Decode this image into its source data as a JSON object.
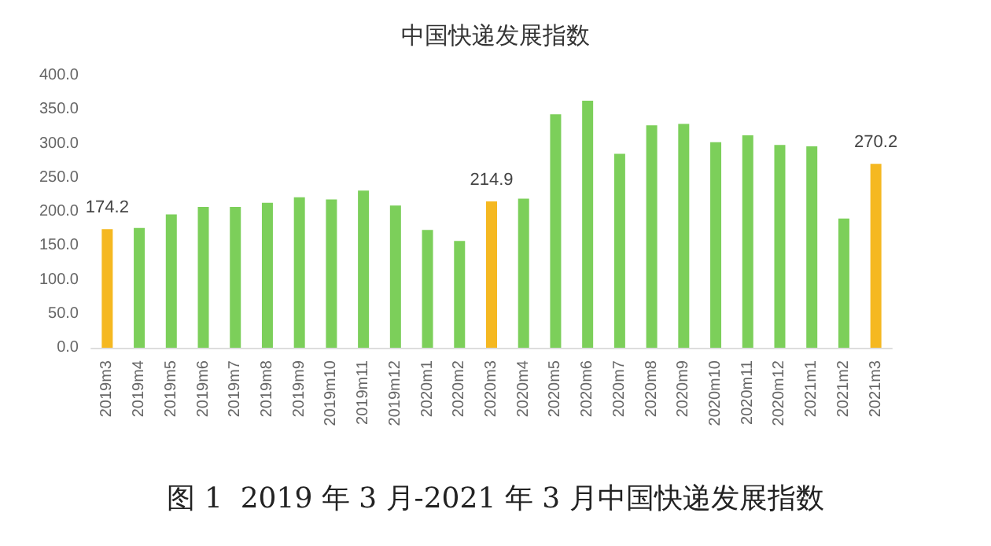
{
  "chart_data": {
    "type": "bar",
    "title": "中国快递发展指数",
    "categories": [
      "2019m3",
      "2019m4",
      "2019m5",
      "2019m6",
      "2019m7",
      "2019m8",
      "2019m9",
      "2019m10",
      "2019m11",
      "2019m12",
      "2020m1",
      "2020m2",
      "2020m3",
      "2020m4",
      "2020m5",
      "2020m6",
      "2020m7",
      "2020m8",
      "2020m9",
      "2020m10",
      "2020m11",
      "2020m12",
      "2021m1",
      "2021m2",
      "2021m3"
    ],
    "values": [
      174.2,
      176,
      196,
      207,
      207,
      213,
      221,
      218,
      231,
      209,
      173,
      157,
      214.9,
      219,
      343,
      363,
      285,
      327,
      329,
      302,
      312,
      298,
      296,
      190,
      270.2
    ],
    "colors": [
      "#f5b821",
      "#7ccf5a",
      "#7ccf5a",
      "#7ccf5a",
      "#7ccf5a",
      "#7ccf5a",
      "#7ccf5a",
      "#7ccf5a",
      "#7ccf5a",
      "#7ccf5a",
      "#7ccf5a",
      "#7ccf5a",
      "#f5b821",
      "#7ccf5a",
      "#7ccf5a",
      "#7ccf5a",
      "#7ccf5a",
      "#7ccf5a",
      "#7ccf5a",
      "#7ccf5a",
      "#7ccf5a",
      "#7ccf5a",
      "#7ccf5a",
      "#7ccf5a",
      "#f5b821"
    ],
    "value_labels": [
      "174.2",
      null,
      null,
      null,
      null,
      null,
      null,
      null,
      null,
      null,
      null,
      null,
      "214.9",
      null,
      null,
      null,
      null,
      null,
      null,
      null,
      null,
      null,
      null,
      null,
      "270.2"
    ],
    "ylim": [
      0,
      400
    ],
    "yticks": [
      {
        "value": 0,
        "label": "0.0"
      },
      {
        "value": 50,
        "label": "50.0"
      },
      {
        "value": 100,
        "label": "100.0"
      },
      {
        "value": 150,
        "label": "150.0"
      },
      {
        "value": 200,
        "label": "200.0"
      },
      {
        "value": 250,
        "label": "250.0"
      },
      {
        "value": 300,
        "label": "300.0"
      },
      {
        "value": 350,
        "label": "350.0"
      },
      {
        "value": 400,
        "label": "400.0"
      }
    ],
    "grid": false,
    "annotations": [
      "图 1  2019 年 3 月-2021 年 3 月中国快递发展指数"
    ]
  }
}
